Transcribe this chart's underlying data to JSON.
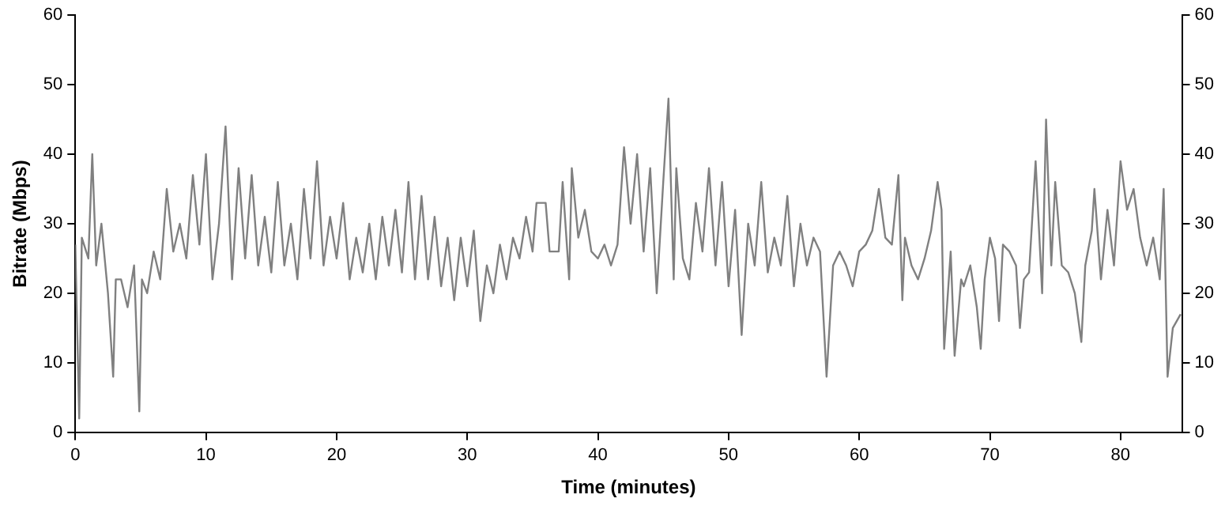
{
  "chart_data": {
    "type": "line",
    "xlabel": "Time (minutes)",
    "ylabel": "Bitrate (Mbps)",
    "x": [
      0,
      0.3,
      0.5,
      1,
      1.3,
      1.6,
      2,
      2.5,
      2.9,
      3.1,
      3.5,
      4,
      4.5,
      4.9,
      5.1,
      5.5,
      6,
      6.5,
      7,
      7.5,
      8,
      8.5,
      9,
      9.5,
      10,
      10.5,
      11,
      11.5,
      12,
      12.5,
      13,
      13.5,
      14,
      14.5,
      15,
      15.5,
      16,
      16.5,
      17,
      17.5,
      18,
      18.5,
      19,
      19.5,
      20,
      20.5,
      21,
      21.5,
      22,
      22.5,
      23,
      23.5,
      24,
      24.5,
      25,
      25.5,
      26,
      26.5,
      27,
      27.5,
      28,
      28.5,
      29,
      29.5,
      30,
      30.5,
      31,
      31.5,
      32,
      32.5,
      33,
      33.5,
      34,
      34.5,
      35,
      35.3,
      36,
      36.3,
      37,
      37.3,
      37.8,
      38,
      38.5,
      39,
      39.5,
      40,
      40.5,
      41,
      41.5,
      42,
      42.5,
      43,
      43.5,
      44,
      44.5,
      45,
      45.4,
      45.8,
      46,
      46.5,
      47,
      47.5,
      48,
      48.5,
      49,
      49.5,
      50,
      50.5,
      51,
      51.5,
      52,
      52.5,
      53,
      53.5,
      54,
      54.5,
      55,
      55.5,
      56,
      56.5,
      57,
      57.5,
      58,
      58.5,
      59,
      59.5,
      60,
      60.5,
      61,
      61.5,
      62,
      62.5,
      63,
      63.3,
      63.5,
      64,
      64.5,
      65,
      65.5,
      66,
      66.3,
      66.5,
      67,
      67.3,
      67.8,
      68,
      68.5,
      69,
      69.3,
      69.6,
      70,
      70.4,
      70.7,
      71,
      71.5,
      72,
      72.3,
      72.6,
      73,
      73.5,
      74,
      74.3,
      74.7,
      75,
      75.5,
      76,
      76.5,
      77,
      77.3,
      77.8,
      78,
      78.5,
      79,
      79.5,
      80,
      80.5,
      81,
      81.5,
      82,
      82.5,
      83,
      83.3,
      83.6,
      84,
      84.6
    ],
    "series": [
      {
        "color": "#808080",
        "values": [
          27,
          2,
          28,
          25,
          40,
          24,
          30,
          20,
          8,
          22,
          22,
          18,
          24,
          3,
          22,
          20,
          26,
          22,
          35,
          26,
          30,
          25,
          37,
          27,
          40,
          22,
          30,
          44,
          22,
          38,
          25,
          37,
          24,
          31,
          23,
          36,
          24,
          30,
          22,
          35,
          25,
          39,
          24,
          31,
          25,
          33,
          22,
          28,
          23,
          30,
          22,
          31,
          24,
          32,
          23,
          36,
          22,
          34,
          22,
          31,
          21,
          28,
          19,
          28,
          21,
          29,
          16,
          24,
          20,
          27,
          22,
          28,
          25,
          31,
          26,
          33,
          33,
          26,
          26,
          36,
          22,
          38,
          28,
          32,
          26,
          25,
          27,
          24,
          27,
          41,
          30,
          40,
          26,
          38,
          20,
          36,
          48,
          22,
          38,
          25,
          22,
          33,
          26,
          38,
          24,
          36,
          21,
          32,
          14,
          30,
          24,
          36,
          23,
          28,
          24,
          34,
          21,
          30,
          24,
          28,
          26,
          8,
          24,
          26,
          24,
          21,
          26,
          27,
          29,
          35,
          28,
          27,
          37,
          19,
          28,
          24,
          22,
          25,
          29,
          36,
          32,
          12,
          26,
          11,
          22,
          21,
          24,
          18,
          12,
          22,
          28,
          25,
          16,
          27,
          26,
          24,
          15,
          22,
          23,
          39,
          20,
          45,
          24,
          36,
          24,
          23,
          20,
          13,
          24,
          29,
          35,
          22,
          32,
          24,
          39,
          32,
          35,
          28,
          24,
          28,
          22,
          35,
          8,
          15,
          17
        ]
      }
    ],
    "xlim": [
      0,
      84.7
    ],
    "xticks": [
      0,
      10,
      20,
      30,
      40,
      50,
      60,
      70,
      80
    ],
    "ylim": [
      0,
      60
    ],
    "yticks": [
      0,
      10,
      20,
      30,
      40,
      50,
      60
    ],
    "y2lim": [
      0,
      60
    ],
    "y2ticks": [
      0,
      10,
      20,
      30,
      40,
      50,
      60
    ],
    "grid": false,
    "legend": false,
    "marker": "none",
    "line_style": "solid"
  }
}
